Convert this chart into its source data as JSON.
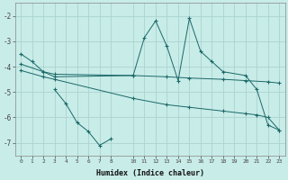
{
  "background_color": "#c8ece8",
  "grid_color": "#aad4d0",
  "line_color": "#1a6868",
  "xlabel": "Humidex (Indice chaleur)",
  "xlim": [
    -0.5,
    23.5
  ],
  "ylim": [
    -7.5,
    -1.5
  ],
  "yticks": [
    -7,
    -6,
    -5,
    -4,
    -3,
    -2
  ],
  "xticks": [
    0,
    1,
    2,
    3,
    4,
    5,
    6,
    7,
    8,
    10,
    11,
    12,
    13,
    14,
    15,
    16,
    17,
    18,
    19,
    20,
    21,
    22,
    23
  ],
  "curve1_x": [
    0,
    1,
    2,
    3,
    10,
    11,
    12,
    13,
    14,
    15,
    16,
    17,
    18,
    20,
    21,
    22,
    23
  ],
  "curve1_y": [
    -3.5,
    -3.8,
    -4.2,
    -4.4,
    -4.35,
    -2.85,
    -2.2,
    -3.2,
    -4.55,
    -2.1,
    -3.4,
    -3.8,
    -4.2,
    -4.35,
    -4.9,
    -6.3,
    -6.5
  ],
  "curve2_x": [
    0,
    2,
    3,
    10,
    13,
    15,
    18,
    20,
    22,
    23
  ],
  "curve2_y": [
    -3.9,
    -4.2,
    -4.3,
    -4.35,
    -4.4,
    -4.45,
    -4.5,
    -4.55,
    -4.6,
    -4.65
  ],
  "curve3_x": [
    0,
    2,
    3,
    10,
    13,
    15,
    18,
    20,
    21,
    22,
    23
  ],
  "curve3_y": [
    -4.15,
    -4.4,
    -4.5,
    -5.25,
    -5.5,
    -5.6,
    -5.75,
    -5.85,
    -5.9,
    -6.0,
    -6.5
  ],
  "curve4_x": [
    3,
    4,
    5,
    6,
    7,
    8
  ],
  "curve4_y": [
    -4.9,
    -5.45,
    -6.2,
    -6.55,
    -7.1,
    -6.85
  ]
}
